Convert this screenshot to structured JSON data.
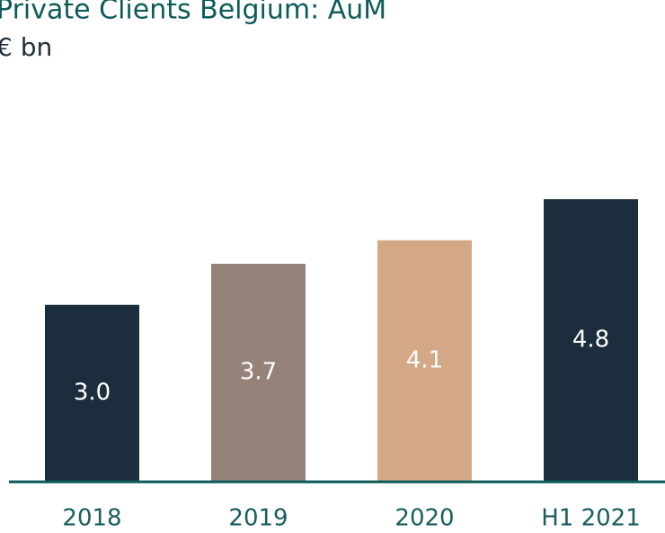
{
  "chart_data": {
    "type": "bar",
    "title": "Private Clients Belgium: AuM",
    "subtitle": "€ bn",
    "categories": [
      "2018",
      "2019",
      "2020",
      "H1 2021"
    ],
    "values": [
      3.0,
      3.7,
      4.1,
      4.8
    ],
    "value_labels": [
      "3.0",
      "3.7",
      "4.1",
      "4.8"
    ],
    "colors": [
      "#1c2e3d",
      "#958279",
      "#d4a886",
      "#1c2e3d"
    ]
  }
}
